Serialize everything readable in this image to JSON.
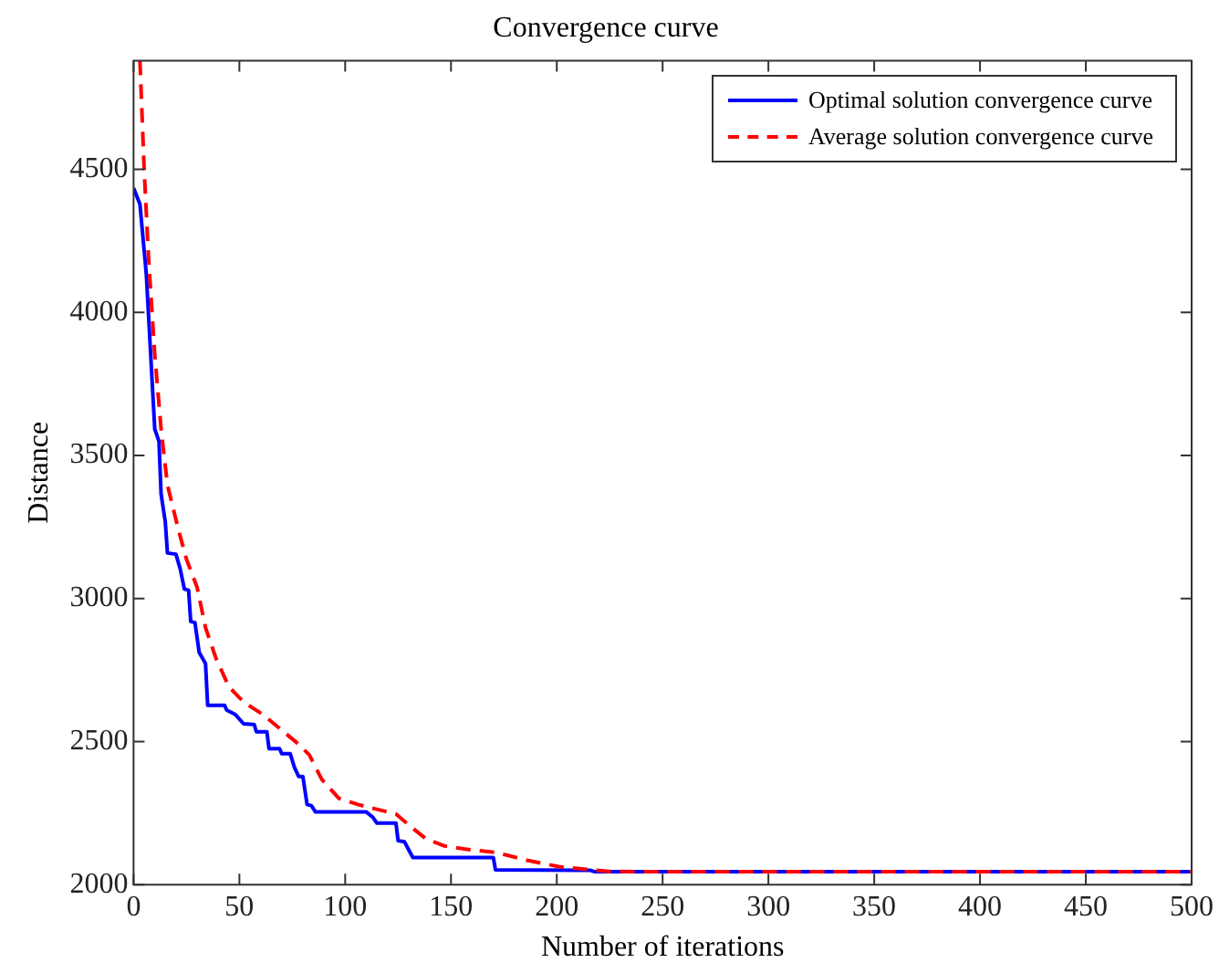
{
  "chart_data": {
    "type": "line",
    "title": "Convergence curve",
    "xlabel": "Number of iterations",
    "ylabel": "Distance",
    "xlim": [
      0,
      500
    ],
    "xticks": [
      0,
      50,
      100,
      150,
      200,
      250,
      300,
      350,
      400,
      450,
      500
    ],
    "ylim": [
      2000,
      4880
    ],
    "yticks": [
      2000,
      2500,
      3000,
      3500,
      4000,
      4500
    ],
    "grid": false,
    "legend": "top right",
    "marker": "none",
    "series": [
      {
        "name": "Optimal solution convergence curve",
        "color": "#0000ff",
        "line_style": "solid",
        "x": [
          0,
          3,
          6,
          10,
          12,
          13,
          15,
          16,
          20,
          22,
          24,
          26,
          27,
          29,
          31,
          34,
          35,
          43,
          44,
          48,
          52,
          57,
          58,
          63,
          64,
          69,
          70,
          74,
          76,
          78,
          80,
          82,
          84,
          86,
          110,
          113,
          115,
          124,
          125,
          128,
          130,
          132,
          170,
          171,
          216,
          218,
          500
        ],
        "values": [
          4435,
          4378,
          4135,
          3593,
          3549,
          3365,
          3267,
          3159,
          3155,
          3105,
          3033,
          3029,
          2920,
          2916,
          2812,
          2773,
          2627,
          2627,
          2610,
          2595,
          2562,
          2560,
          2534,
          2534,
          2475,
          2475,
          2458,
          2458,
          2410,
          2378,
          2378,
          2280,
          2276,
          2254,
          2254,
          2236,
          2215,
          2215,
          2154,
          2150,
          2122,
          2095,
          2095,
          2052,
          2050,
          2045,
          2045
        ]
      },
      {
        "name": "Average solution convergence curve",
        "color": "#ff0000",
        "line_style": "dashed",
        "x": [
          3,
          5,
          7,
          10,
          13,
          16,
          21,
          25,
          30,
          34,
          39,
          45,
          52,
          61,
          70,
          77,
          83,
          89,
          97,
          106,
          118,
          124,
          129,
          138,
          147,
          159,
          171,
          186,
          201,
          216,
          225,
          250,
          500
        ],
        "values": [
          4880,
          4500,
          4200,
          3853,
          3593,
          3397,
          3246,
          3137,
          3040,
          2898,
          2790,
          2692,
          2638,
          2595,
          2540,
          2497,
          2454,
          2367,
          2302,
          2280,
          2258,
          2247,
          2215,
          2161,
          2135,
          2122,
          2113,
          2085,
          2063,
          2052,
          2046,
          2045,
          2045
        ]
      }
    ]
  }
}
